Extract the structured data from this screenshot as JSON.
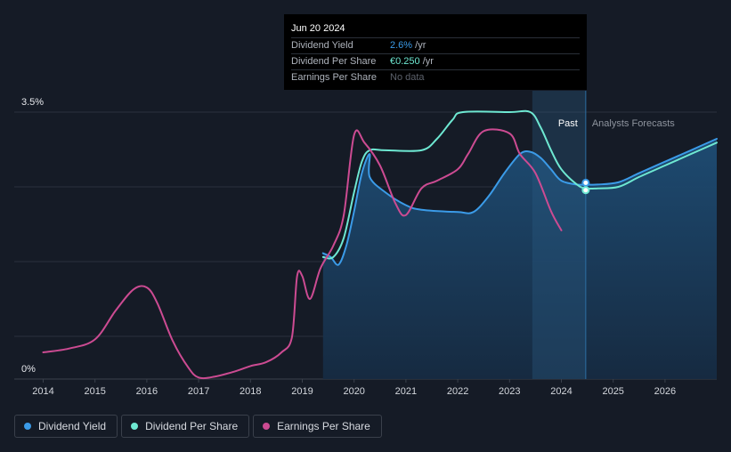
{
  "chart_data": {
    "type": "line",
    "title": "",
    "xlabel": "",
    "ylabel": "",
    "ylim": [
      0,
      3.5
    ],
    "y_tick_labels": [
      "0%",
      "3.5%"
    ],
    "x_tick_labels": [
      "2014",
      "2015",
      "2016",
      "2017",
      "2018",
      "2019",
      "2020",
      "2021",
      "2022",
      "2023",
      "2024",
      "2025",
      "2026"
    ],
    "region_labels": {
      "past": "Past",
      "forecast": "Analysts Forecasts"
    },
    "past_divider_year": 2024.47,
    "series": [
      {
        "name": "Dividend Yield",
        "color": "#3b9be8",
        "points": [
          [
            2019.4,
            1.65
          ],
          [
            2019.55,
            1.6
          ],
          [
            2019.7,
            1.5
          ],
          [
            2019.85,
            1.75
          ],
          [
            2020.0,
            2.2
          ],
          [
            2020.15,
            2.7
          ],
          [
            2020.3,
            2.95
          ],
          [
            2020.3,
            2.65
          ],
          [
            2020.6,
            2.45
          ],
          [
            2021.0,
            2.28
          ],
          [
            2021.3,
            2.22
          ],
          [
            2022.0,
            2.19
          ],
          [
            2022.3,
            2.19
          ],
          [
            2022.6,
            2.4
          ],
          [
            2022.9,
            2.7
          ],
          [
            2023.2,
            2.95
          ],
          [
            2023.4,
            2.98
          ],
          [
            2023.6,
            2.9
          ],
          [
            2023.8,
            2.75
          ],
          [
            2024.0,
            2.6
          ],
          [
            2024.3,
            2.55
          ],
          [
            2024.47,
            2.55
          ],
          [
            2024.7,
            2.55
          ],
          [
            2025.1,
            2.58
          ],
          [
            2025.5,
            2.7
          ],
          [
            2026.0,
            2.85
          ],
          [
            2026.5,
            3.0
          ],
          [
            2027.0,
            3.15
          ]
        ]
      },
      {
        "name": "Dividend Per Share",
        "color": "#6ee8d2",
        "points": [
          [
            2019.4,
            1.6
          ],
          [
            2019.6,
            1.6
          ],
          [
            2019.8,
            1.85
          ],
          [
            2020.0,
            2.45
          ],
          [
            2020.15,
            2.85
          ],
          [
            2020.3,
            3.0
          ],
          [
            2020.6,
            3.0
          ],
          [
            2021.3,
            3.0
          ],
          [
            2021.6,
            3.15
          ],
          [
            2021.9,
            3.4
          ],
          [
            2022.1,
            3.5
          ],
          [
            2023.0,
            3.5
          ],
          [
            2023.4,
            3.5
          ],
          [
            2023.6,
            3.3
          ],
          [
            2023.8,
            3.0
          ],
          [
            2024.0,
            2.75
          ],
          [
            2024.3,
            2.55
          ],
          [
            2024.47,
            2.5
          ],
          [
            2024.7,
            2.5
          ],
          [
            2025.1,
            2.52
          ],
          [
            2025.5,
            2.65
          ],
          [
            2026.0,
            2.8
          ],
          [
            2026.5,
            2.95
          ],
          [
            2027.0,
            3.1
          ]
        ]
      },
      {
        "name": "Earnings Per Share",
        "color": "#cc4b92",
        "points": [
          [
            2014.0,
            0.35
          ],
          [
            2014.5,
            0.4
          ],
          [
            2015.0,
            0.52
          ],
          [
            2015.4,
            0.9
          ],
          [
            2015.75,
            1.18
          ],
          [
            2016.0,
            1.2
          ],
          [
            2016.2,
            1.0
          ],
          [
            2016.5,
            0.5
          ],
          [
            2016.8,
            0.15
          ],
          [
            2017.0,
            0.02
          ],
          [
            2017.3,
            0.03
          ],
          [
            2017.7,
            0.1
          ],
          [
            2018.0,
            0.17
          ],
          [
            2018.3,
            0.22
          ],
          [
            2018.6,
            0.35
          ],
          [
            2018.8,
            0.55
          ],
          [
            2018.9,
            1.35
          ],
          [
            2019.0,
            1.35
          ],
          [
            2019.15,
            1.05
          ],
          [
            2019.35,
            1.45
          ],
          [
            2019.6,
            1.75
          ],
          [
            2019.8,
            2.15
          ],
          [
            2020.0,
            3.2
          ],
          [
            2020.2,
            3.1
          ],
          [
            2020.5,
            2.8
          ],
          [
            2020.8,
            2.3
          ],
          [
            2021.0,
            2.15
          ],
          [
            2021.3,
            2.5
          ],
          [
            2021.6,
            2.6
          ],
          [
            2022.0,
            2.75
          ],
          [
            2022.2,
            2.95
          ],
          [
            2022.5,
            3.25
          ],
          [
            2023.0,
            3.22
          ],
          [
            2023.2,
            2.95
          ],
          [
            2023.5,
            2.7
          ],
          [
            2023.8,
            2.2
          ],
          [
            2024.0,
            1.95
          ]
        ]
      }
    ]
  },
  "tooltip": {
    "date": "Jun 20 2024",
    "rows": [
      {
        "label": "Dividend Yield",
        "value": "2.6%",
        "unit": " /yr",
        "color": "#3b9be8"
      },
      {
        "label": "Dividend Per Share",
        "value": "€0.250",
        "unit": " /yr",
        "color": "#6ee8d2"
      },
      {
        "label": "Earnings Per Share",
        "value": "No data",
        "unit": "",
        "color": "#5c616b"
      }
    ]
  },
  "legend": [
    {
      "label": "Dividend Yield",
      "color": "#3b9be8"
    },
    {
      "label": "Dividend Per Share",
      "color": "#6ee8d2"
    },
    {
      "label": "Earnings Per Share",
      "color": "#cc4b92"
    }
  ]
}
